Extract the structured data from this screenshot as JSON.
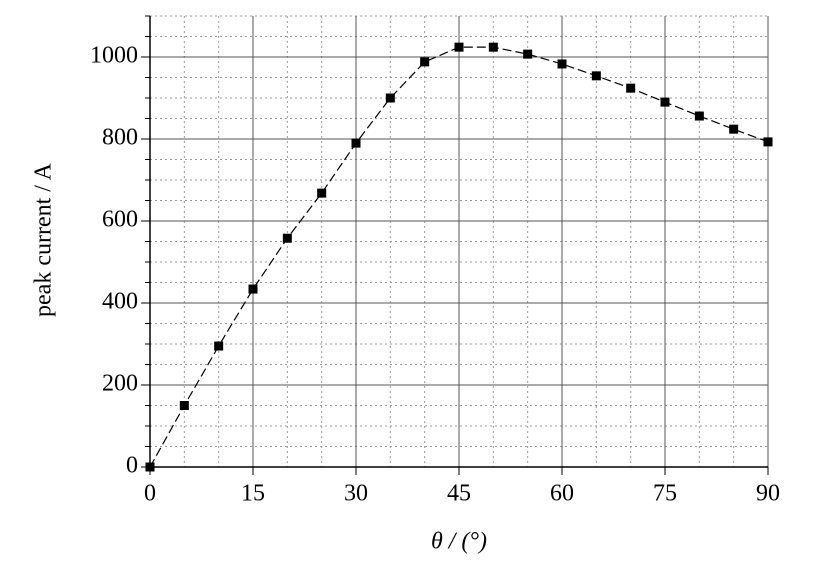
{
  "chart_data": {
    "type": "line",
    "xlabel": "θ / (°)",
    "ylabel": "peak current / A",
    "x": [
      0,
      5,
      10,
      15,
      20,
      25,
      30,
      35,
      40,
      45,
      50,
      55,
      60,
      65,
      70,
      75,
      80,
      85,
      90
    ],
    "series": [
      {
        "color": "#000000",
        "values": [
          0,
          150,
          295,
          434,
          558,
          668,
          790,
          900,
          988,
          1024,
          1024,
          1007,
          983,
          954,
          924,
          890,
          856,
          824,
          793
        ]
      }
    ],
    "xlim": [
      0,
      90
    ],
    "ylim": [
      0,
      1100
    ],
    "xticks": [
      0,
      15,
      30,
      45,
      60,
      75,
      90
    ],
    "yticks": [
      0,
      200,
      400,
      600,
      800,
      1000
    ],
    "minor_xticks": [
      5,
      10,
      20,
      25,
      35,
      40,
      50,
      55,
      65,
      70,
      80,
      85
    ],
    "minor_yticks": [
      50,
      100,
      150,
      250,
      300,
      350,
      450,
      500,
      550,
      650,
      700,
      750,
      850,
      900,
      950,
      1050,
      1100
    ],
    "grid": true
  }
}
